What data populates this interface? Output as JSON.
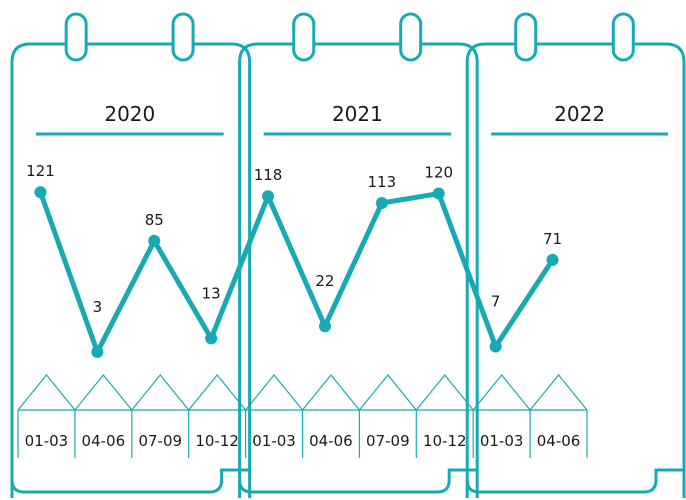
{
  "chart_data": {
    "type": "line",
    "title": "",
    "xlabel": "",
    "ylabel": "",
    "groups": [
      {
        "label": "2020",
        "categories": [
          "01-03",
          "04-06",
          "07-09",
          "10-12"
        ]
      },
      {
        "label": "2021",
        "categories": [
          "01-03",
          "04-06",
          "07-09",
          "10-12"
        ]
      },
      {
        "label": "2022",
        "categories": [
          "01-03",
          "04-06"
        ]
      }
    ],
    "categories": [
      "01-03",
      "04-06",
      "07-09",
      "10-12",
      "01-03",
      "04-06",
      "07-09",
      "10-12",
      "01-03",
      "04-06"
    ],
    "values": [
      121,
      3,
      85,
      13,
      118,
      22,
      113,
      120,
      7,
      71
    ],
    "ylim": [
      0,
      130
    ],
    "grid": false,
    "legend": "none",
    "colors": {
      "accent": "#17aab4",
      "text": "#1a1a1a"
    }
  }
}
